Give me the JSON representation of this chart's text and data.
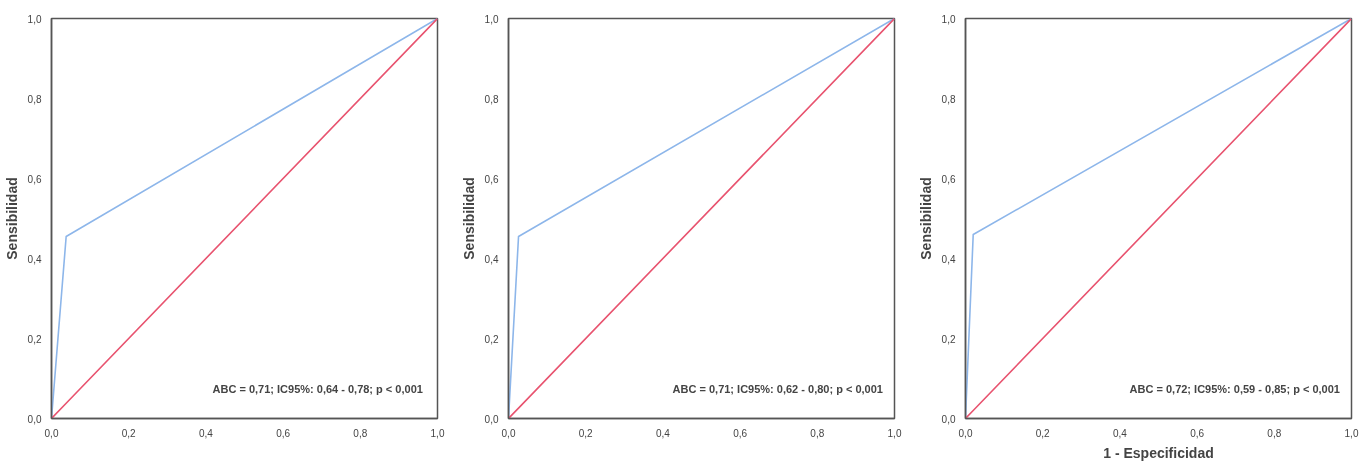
{
  "chart_data": [
    {
      "type": "line",
      "ylabel": "Sensibilidad",
      "x": [
        0,
        0.038,
        1
      ],
      "xlim": [
        0,
        1
      ],
      "ylim": [
        0,
        1
      ],
      "xticks": [
        {
          "value": 0,
          "label": "0,0"
        },
        {
          "value": 0.2,
          "label": "0,2"
        },
        {
          "value": 0.4,
          "label": "0,4"
        },
        {
          "value": 0.6,
          "label": "0,6"
        },
        {
          "value": 0.8,
          "label": "0,8"
        },
        {
          "value": 1,
          "label": "1,0"
        }
      ],
      "yticks": [
        {
          "value": 0,
          "label": "0,0"
        },
        {
          "value": 0.2,
          "label": "0,2"
        },
        {
          "value": 0.4,
          "label": "0,4"
        },
        {
          "value": 0.6,
          "label": "0,6"
        },
        {
          "value": 0.8,
          "label": "0,8"
        },
        {
          "value": 1,
          "label": "1,0"
        }
      ],
      "series": [
        {
          "color": "#8db6ea",
          "values": [
            0,
            0.455,
            1
          ]
        },
        {
          "color": "#e8536f",
          "values": [
            0,
            0.038,
            1
          ]
        }
      ],
      "annotations": [
        "ABC = 0,71; IC95%: 0,64  - 0,78; p < 0,001"
      ],
      "grid": false
    },
    {
      "type": "line",
      "ylabel": "Sensibilidad",
      "x": [
        0,
        0.026,
        1
      ],
      "xlim": [
        0,
        1
      ],
      "ylim": [
        0,
        1
      ],
      "xticks": [
        {
          "value": 0,
          "label": "0,0"
        },
        {
          "value": 0.2,
          "label": "0,2"
        },
        {
          "value": 0.4,
          "label": "0,4"
        },
        {
          "value": 0.6,
          "label": "0,6"
        },
        {
          "value": 0.8,
          "label": "0,8"
        },
        {
          "value": 1,
          "label": "1,0"
        }
      ],
      "yticks": [
        {
          "value": 0,
          "label": "0,0"
        },
        {
          "value": 0.2,
          "label": "0,2"
        },
        {
          "value": 0.4,
          "label": "0,4"
        },
        {
          "value": 0.6,
          "label": "0,6"
        },
        {
          "value": 0.8,
          "label": "0,8"
        },
        {
          "value": 1,
          "label": "1,0"
        }
      ],
      "series": [
        {
          "color": "#8db6ea",
          "values": [
            0,
            0.455,
            1
          ]
        },
        {
          "color": "#e8536f",
          "values": [
            0,
            0.026,
            1
          ]
        }
      ],
      "annotations": [
        "ABC = 0,71; IC95%: 0,62 - 0,80; p < 0,001"
      ],
      "grid": false
    },
    {
      "type": "line",
      "ylabel": "Sensibilidad",
      "xlabel": "1 - Especificidad",
      "x": [
        0,
        0.02,
        1
      ],
      "xlim": [
        0,
        1
      ],
      "ylim": [
        0,
        1
      ],
      "xticks": [
        {
          "value": 0,
          "label": "0,0"
        },
        {
          "value": 0.2,
          "label": "0,2"
        },
        {
          "value": 0.4,
          "label": "0,4"
        },
        {
          "value": 0.6,
          "label": "0,6"
        },
        {
          "value": 0.8,
          "label": "0,8"
        },
        {
          "value": 1,
          "label": "1,0"
        }
      ],
      "yticks": [
        {
          "value": 0,
          "label": "0,0"
        },
        {
          "value": 0.2,
          "label": "0,2"
        },
        {
          "value": 0.4,
          "label": "0,4"
        },
        {
          "value": 0.6,
          "label": "0,6"
        },
        {
          "value": 0.8,
          "label": "0,8"
        },
        {
          "value": 1,
          "label": "1,0"
        }
      ],
      "series": [
        {
          "color": "#8db6ea",
          "values": [
            0,
            0.46,
            1
          ]
        },
        {
          "color": "#e8536f",
          "values": [
            0,
            0.02,
            1
          ]
        }
      ],
      "annotations": [
        "ABC = 0,72; IC95%: 0,59 - 0,85; p < 0,001"
      ],
      "grid": false
    }
  ]
}
